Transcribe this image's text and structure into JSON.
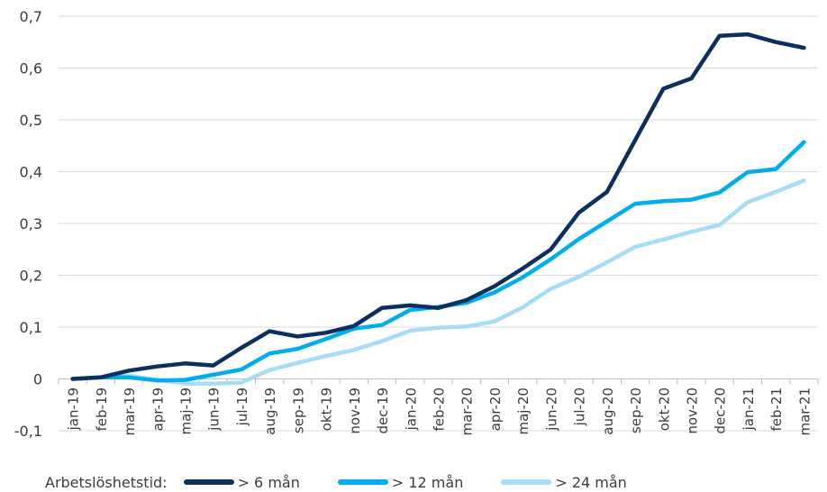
{
  "chart_data": {
    "type": "line",
    "categories": [
      "jan-19",
      "feb-19",
      "mar-19",
      "apr-19",
      "maj-19",
      "jun-19",
      "jul-19",
      "aug-19",
      "sep-19",
      "okt-19",
      "nov-19",
      "dec-19",
      "jan-20",
      "feb-20",
      "mar-20",
      "apr-20",
      "maj-20",
      "jun-20",
      "jul-20",
      "aug-20",
      "sep-20",
      "okt-20",
      "nov-20",
      "dec-20",
      "jan-21",
      "feb-21",
      "mar-21"
    ],
    "ylim": [
      -0.1,
      0.7
    ],
    "yticks": [
      -0.1,
      0,
      0.1,
      0.2,
      0.3,
      0.4,
      0.5,
      0.6,
      0.7
    ],
    "ytick_labels": [
      "-0,1",
      "0",
      "0,1",
      "0,2",
      "0,3",
      "0,4",
      "0,5",
      "0,6",
      "0,7"
    ],
    "grid": "horizontal",
    "legend_position": "bottom",
    "legend_title": "Arbetslöshetstid:",
    "series": [
      {
        "name": "> 6 mån",
        "color": "#0b3060",
        "values": [
          0.0,
          0.003,
          0.016,
          0.024,
          0.03,
          0.026,
          0.06,
          0.092,
          0.082,
          0.089,
          0.102,
          0.137,
          0.142,
          0.137,
          0.152,
          0.179,
          0.213,
          0.25,
          0.321,
          0.361,
          0.461,
          0.56,
          0.58,
          0.662,
          0.665,
          0.65,
          0.639
        ]
      },
      {
        "name": "> 12 mån",
        "color": "#00aeef",
        "values": [
          0.0,
          0.003,
          0.003,
          -0.003,
          -0.002,
          0.008,
          0.018,
          0.049,
          0.058,
          0.077,
          0.097,
          0.104,
          0.133,
          0.139,
          0.147,
          0.167,
          0.196,
          0.231,
          0.27,
          0.304,
          0.338,
          0.343,
          0.346,
          0.36,
          0.399,
          0.405,
          0.457
        ]
      },
      {
        "name": "> 24 mån",
        "color": "#a6dcf4",
        "values": [
          0.0,
          0.003,
          0.006,
          -0.002,
          -0.009,
          -0.009,
          -0.007,
          0.017,
          0.031,
          0.044,
          0.056,
          0.073,
          0.093,
          0.099,
          0.101,
          0.111,
          0.138,
          0.174,
          0.197,
          0.225,
          0.255,
          0.269,
          0.284,
          0.297,
          0.341,
          0.361,
          0.383
        ]
      }
    ]
  }
}
